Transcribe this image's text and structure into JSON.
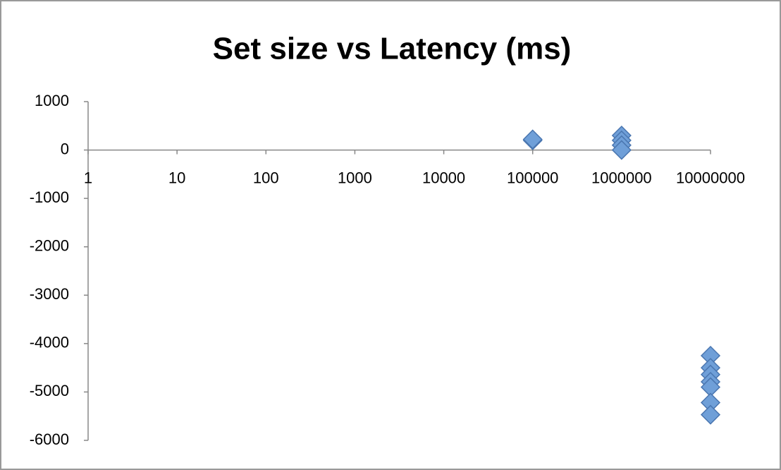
{
  "chart_data": {
    "type": "scatter",
    "title": "Set size vs Latency (ms)",
    "xscale": "log",
    "series": [
      {
        "color": "#6f9fd8",
        "x": [
          100000,
          100000,
          1000000,
          1000000,
          1000000,
          1000000,
          10000000,
          10000000,
          10000000,
          10000000,
          10000000,
          10000000,
          10000000
        ],
        "values": [
          200,
          220,
          300,
          200,
          100,
          0,
          -4250,
          -4500,
          -4640,
          -4790,
          -4900,
          -5220,
          -5470
        ]
      }
    ],
    "xlim": [
      1,
      10000000
    ],
    "xticks": [
      1,
      10,
      100,
      1000,
      10000,
      100000,
      1000000,
      10000000
    ],
    "ylim": [
      -6000,
      1000
    ],
    "yticks": [
      1000,
      0,
      -1000,
      -2000,
      -3000,
      -4000,
      -5000,
      -6000
    ],
    "grid": false
  }
}
